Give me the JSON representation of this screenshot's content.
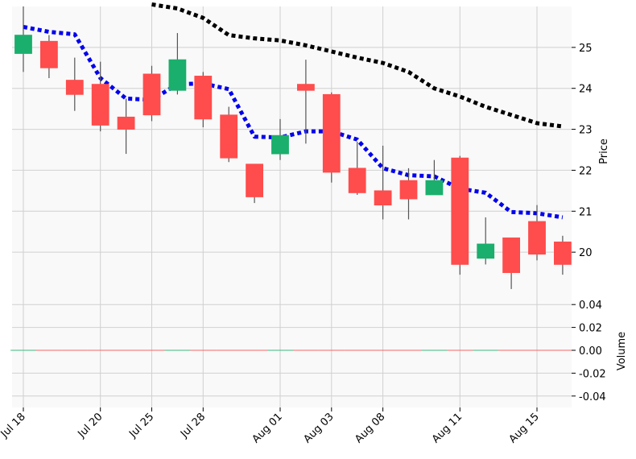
{
  "chart_data": {
    "type": "candlestick",
    "style": {
      "up_color": "#1aaf6c",
      "down_color": "#ff4c4c",
      "wick_color": "#555555",
      "panel_bg": "#f9f9f9",
      "grid_color": "#d0d0d0",
      "ma_short_color": "#0000ee",
      "ma_long_color": "#000000"
    },
    "x_tick_labels": [
      "Jul 18",
      "Jul 20",
      "Jul 25",
      "Jul 28",
      "Aug 01",
      "Aug 03",
      "Aug 08",
      "Aug 11",
      "Aug 15"
    ],
    "x_tick_indices": [
      0,
      3,
      5,
      7,
      10,
      12,
      14,
      17,
      20
    ],
    "candles": [
      {
        "open": 24.85,
        "high": 26.0,
        "low": 24.4,
        "close": 25.3
      },
      {
        "open": 25.15,
        "high": 25.3,
        "low": 24.25,
        "close": 24.5
      },
      {
        "open": 24.2,
        "high": 24.75,
        "low": 23.45,
        "close": 23.85
      },
      {
        "open": 24.1,
        "high": 24.65,
        "low": 22.95,
        "close": 23.1
      },
      {
        "open": 23.3,
        "high": 23.75,
        "low": 22.4,
        "close": 23.0
      },
      {
        "open": 24.35,
        "high": 24.55,
        "low": 23.2,
        "close": 23.35
      },
      {
        "open": 23.95,
        "high": 25.35,
        "low": 23.85,
        "close": 24.7
      },
      {
        "open": 24.3,
        "high": 24.4,
        "low": 23.05,
        "close": 23.25
      },
      {
        "open": 23.35,
        "high": 23.55,
        "low": 22.2,
        "close": 22.3
      },
      {
        "open": 22.15,
        "high": 22.15,
        "low": 21.2,
        "close": 21.35
      },
      {
        "open": 22.4,
        "high": 23.25,
        "low": 22.25,
        "close": 22.85
      },
      {
        "open": 24.1,
        "high": 24.7,
        "low": 22.65,
        "close": 23.95
      },
      {
        "open": 23.85,
        "high": 23.9,
        "low": 21.7,
        "close": 21.95
      },
      {
        "open": 22.05,
        "high": 22.7,
        "low": 21.4,
        "close": 21.45
      },
      {
        "open": 21.5,
        "high": 22.6,
        "low": 20.8,
        "close": 21.15
      },
      {
        "open": 21.75,
        "high": 22.05,
        "low": 20.8,
        "close": 21.3
      },
      {
        "open": 21.4,
        "high": 22.25,
        "low": 21.4,
        "close": 21.75
      },
      {
        "open": 22.3,
        "high": 22.35,
        "low": 19.45,
        "close": 19.7
      },
      {
        "open": 19.85,
        "high": 20.85,
        "low": 19.7,
        "close": 20.2
      },
      {
        "open": 20.35,
        "high": 20.35,
        "low": 19.1,
        "close": 19.5
      },
      {
        "open": 20.75,
        "high": 21.15,
        "low": 19.8,
        "close": 19.95
      },
      {
        "open": 20.25,
        "high": 20.4,
        "low": 19.45,
        "close": 19.7
      }
    ],
    "ma_short": [
      25.5,
      25.38,
      25.32,
      24.25,
      23.75,
      23.72,
      24.1,
      24.12,
      23.98,
      22.82,
      22.8,
      22.95,
      22.95,
      22.75,
      22.05,
      21.88,
      21.85,
      21.55,
      21.45,
      20.98,
      20.95,
      20.85
    ],
    "ma_long": [
      null,
      null,
      null,
      null,
      null,
      26.05,
      25.95,
      25.72,
      25.3,
      25.22,
      25.17,
      25.05,
      24.9,
      24.75,
      24.62,
      24.4,
      24.0,
      23.8,
      23.55,
      23.35,
      23.15,
      23.07
    ],
    "price_panel": {
      "ylabel": "Price",
      "yticks": [
        20,
        21,
        22,
        23,
        24,
        25
      ],
      "ylim": [
        19.0,
        26.0
      ]
    },
    "volume_panel": {
      "ylabel": "Volume",
      "yticks": [
        "-0.04",
        "-0.02",
        "0.00",
        "0.02",
        "0.04"
      ],
      "ylim": [
        -0.05,
        0.05
      ],
      "values": [
        0,
        0,
        0,
        0,
        0,
        0,
        0,
        0,
        0,
        0,
        0,
        0,
        0,
        0,
        0,
        0,
        0,
        0,
        0,
        0,
        0,
        0
      ]
    },
    "grid": true
  }
}
